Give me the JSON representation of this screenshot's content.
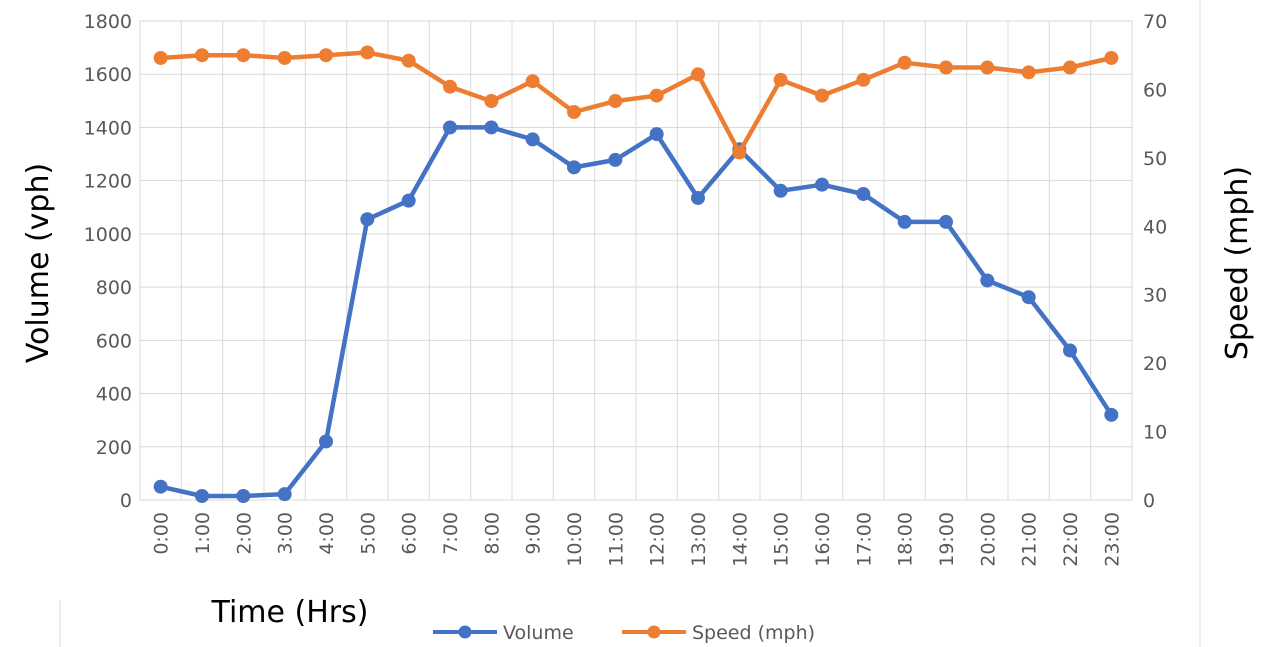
{
  "chart_data": {
    "type": "line",
    "categories": [
      "0:00",
      "1:00",
      "2:00",
      "3:00",
      "4:00",
      "5:00",
      "6:00",
      "7:00",
      "8:00",
      "9:00",
      "10:00",
      "11:00",
      "12:00",
      "13:00",
      "14:00",
      "15:00",
      "16:00",
      "17:00",
      "18:00",
      "19:00",
      "20:00",
      "21:00",
      "22:00",
      "23:00"
    ],
    "xlabel": "Time (Hrs)",
    "ylabel": "Volume (vph)",
    "y2label": "Speed (mph)",
    "ylim": [
      0,
      1800
    ],
    "y2lim": [
      0,
      70
    ],
    "yticks": [
      "0",
      "200",
      "400",
      "600",
      "800",
      "1000",
      "1200",
      "1400",
      "1600",
      "1800"
    ],
    "y2ticks": [
      "0",
      "10",
      "20",
      "30",
      "40",
      "50",
      "60",
      "70"
    ],
    "grid": true,
    "legend_position": "bottom",
    "series": [
      {
        "name": "Volume",
        "axis": "left",
        "color": "#4472C4",
        "values": [
          50,
          15,
          15,
          22,
          220,
          1055,
          1125,
          1400,
          1400,
          1355,
          1250,
          1278,
          1375,
          1135,
          1318,
          1162,
          1185,
          1150,
          1045,
          1045,
          825,
          762,
          562,
          320
        ]
      },
      {
        "name": "Speed (mph)",
        "axis": "right",
        "color": "#ED7D31",
        "values": [
          64.6,
          65.0,
          65.0,
          64.6,
          65.0,
          65.4,
          64.2,
          60.4,
          58.3,
          61.2,
          56.7,
          58.3,
          59.1,
          62.2,
          50.8,
          61.4,
          59.1,
          61.4,
          63.9,
          63.2,
          63.2,
          62.5,
          63.2,
          64.6
        ]
      }
    ]
  }
}
